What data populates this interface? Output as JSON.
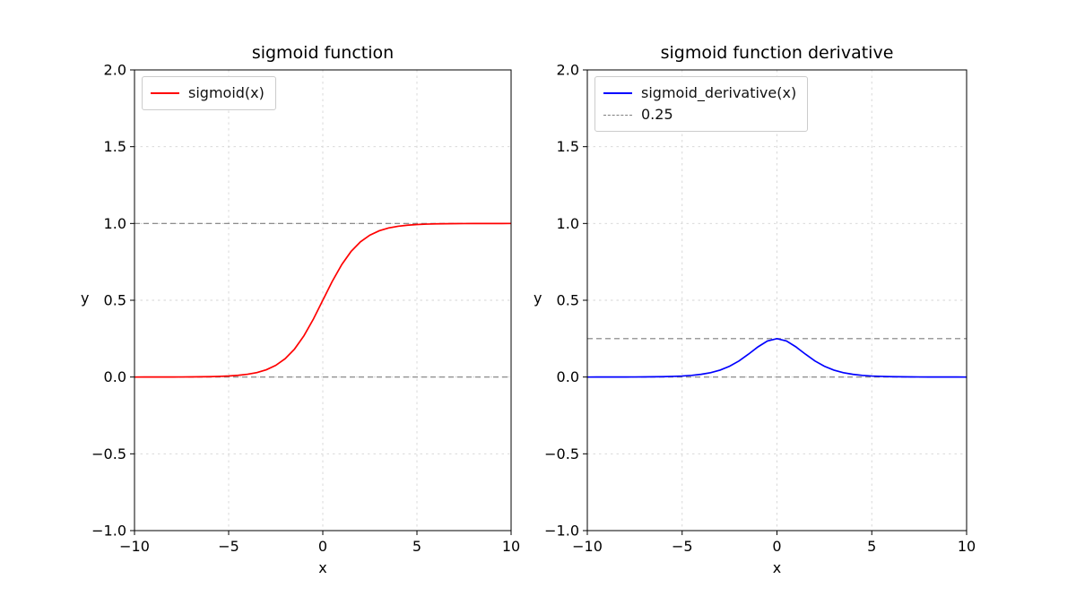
{
  "figure": {
    "background": "#ffffff"
  },
  "chart_data": [
    {
      "type": "line",
      "title": "sigmoid function",
      "xlabel": "x",
      "ylabel": "y",
      "xlim": [
        -10,
        10
      ],
      "ylim": [
        -1.0,
        2.0
      ],
      "grid": true,
      "legend_position": "upper-left",
      "xticks": [
        -10,
        -5,
        0,
        5,
        10
      ],
      "xtick_labels": [
        "−10",
        "−5",
        "0",
        "5",
        "10"
      ],
      "yticks": [
        -1.0,
        -0.5,
        0.0,
        0.5,
        1.0,
        1.5,
        2.0
      ],
      "ytick_labels": [
        "−1.0",
        "−0.5",
        "0.0",
        "0.5",
        "1.0",
        "1.5",
        "2.0"
      ],
      "hlines": [
        {
          "y": 1.0,
          "color": "#7f7f7f",
          "style": "dashed"
        },
        {
          "y": 0.0,
          "color": "#7f7f7f",
          "style": "dashed"
        }
      ],
      "series": [
        {
          "name": "sigmoid(x)",
          "color": "#ff0000",
          "x": [
            -10,
            -9.5,
            -9,
            -8.5,
            -8,
            -7.5,
            -7,
            -6.5,
            -6,
            -5.5,
            -5,
            -4.5,
            -4,
            -3.5,
            -3,
            -2.5,
            -2,
            -1.5,
            -1,
            -0.5,
            0,
            0.5,
            1,
            1.5,
            2,
            2.5,
            3,
            3.5,
            4,
            4.5,
            5,
            5.5,
            6,
            6.5,
            7,
            7.5,
            8,
            8.5,
            9,
            9.5,
            10
          ],
          "y": [
            0.0,
            0.0001,
            0.0001,
            0.0002,
            0.0003,
            0.0006,
            0.0009,
            0.0015,
            0.0025,
            0.0041,
            0.0067,
            0.011,
            0.018,
            0.0293,
            0.0474,
            0.0759,
            0.1192,
            0.1824,
            0.2689,
            0.3775,
            0.5,
            0.6225,
            0.7311,
            0.8176,
            0.8808,
            0.9241,
            0.9526,
            0.9707,
            0.982,
            0.989,
            0.9933,
            0.9959,
            0.9975,
            0.9985,
            0.9991,
            0.9994,
            0.9997,
            0.9998,
            0.9999,
            0.9999,
            1.0
          ]
        }
      ],
      "legend": [
        {
          "label": "sigmoid(x)",
          "color": "#ff0000",
          "dash": false
        }
      ]
    },
    {
      "type": "line",
      "title": "sigmoid function derivative",
      "xlabel": "x",
      "ylabel": "y",
      "xlim": [
        -10,
        10
      ],
      "ylim": [
        -1.0,
        2.0
      ],
      "grid": true,
      "legend_position": "upper-left",
      "xticks": [
        -10,
        -5,
        0,
        5,
        10
      ],
      "xtick_labels": [
        "−10",
        "−5",
        "0",
        "5",
        "10"
      ],
      "yticks": [
        -1.0,
        -0.5,
        0.0,
        0.5,
        1.0,
        1.5,
        2.0
      ],
      "ytick_labels": [
        "−1.0",
        "−0.5",
        "0.0",
        "0.5",
        "1.0",
        "1.5",
        "2.0"
      ],
      "hlines": [
        {
          "y": 0.25,
          "color": "#7f7f7f",
          "style": "dashed"
        },
        {
          "y": 0.0,
          "color": "#7f7f7f",
          "style": "dashed"
        }
      ],
      "series": [
        {
          "name": "sigmoid_derivative(x)",
          "color": "#0000ff",
          "x": [
            -10,
            -9.5,
            -9,
            -8.5,
            -8,
            -7.5,
            -7,
            -6.5,
            -6,
            -5.5,
            -5,
            -4.5,
            -4,
            -3.5,
            -3,
            -2.5,
            -2,
            -1.5,
            -1,
            -0.5,
            0,
            0.5,
            1,
            1.5,
            2,
            2.5,
            3,
            3.5,
            4,
            4.5,
            5,
            5.5,
            6,
            6.5,
            7,
            7.5,
            8,
            8.5,
            9,
            9.5,
            10
          ],
          "y": [
            0.0,
            0.0001,
            0.0001,
            0.0002,
            0.0003,
            0.0006,
            0.0009,
            0.0015,
            0.0025,
            0.0041,
            0.0066,
            0.0109,
            0.0177,
            0.0285,
            0.0452,
            0.0701,
            0.105,
            0.1491,
            0.1966,
            0.235,
            0.25,
            0.235,
            0.1966,
            0.1491,
            0.105,
            0.0701,
            0.0452,
            0.0285,
            0.0177,
            0.0109,
            0.0066,
            0.0041,
            0.0025,
            0.0015,
            0.0009,
            0.0006,
            0.0003,
            0.0002,
            0.0001,
            0.0001,
            0.0
          ]
        }
      ],
      "legend": [
        {
          "label": "sigmoid_derivative(x)",
          "color": "#0000ff",
          "dash": false
        },
        {
          "label": "0.25",
          "color": "#7f7f7f",
          "dash": true
        }
      ]
    }
  ]
}
